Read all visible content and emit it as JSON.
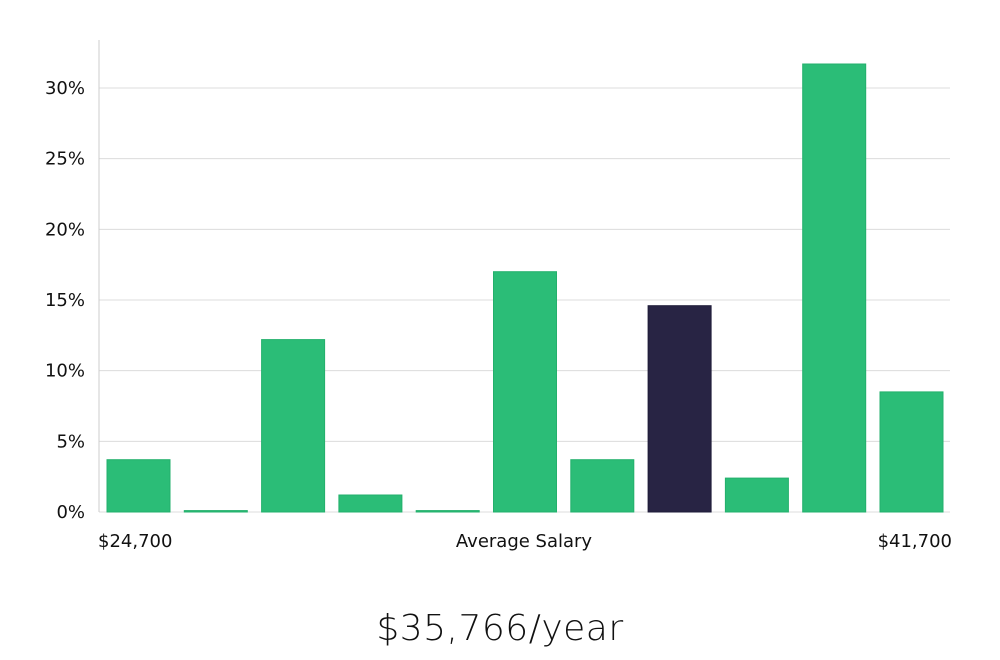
{
  "chart_data": {
    "type": "bar",
    "xlabel": "Average Salary",
    "x_min_label": "$24,700",
    "x_max_label": "$41,700",
    "y_ticks": [
      "0%",
      "5%",
      "10%",
      "15%",
      "20%",
      "25%",
      "30%"
    ],
    "ylim": [
      0,
      33.3
    ],
    "grid": true,
    "values": [
      3.7,
      0.1,
      12.2,
      1.2,
      0.1,
      17.0,
      3.7,
      14.6,
      2.4,
      31.7,
      8.5
    ],
    "highlight_index": 7,
    "colors": {
      "bar": "#2bbd77",
      "bar_highlight": "#282444",
      "grid": "#dcdcdc",
      "axis": "#cccccc"
    }
  },
  "summary": {
    "average_salary": "$35,766/year"
  }
}
